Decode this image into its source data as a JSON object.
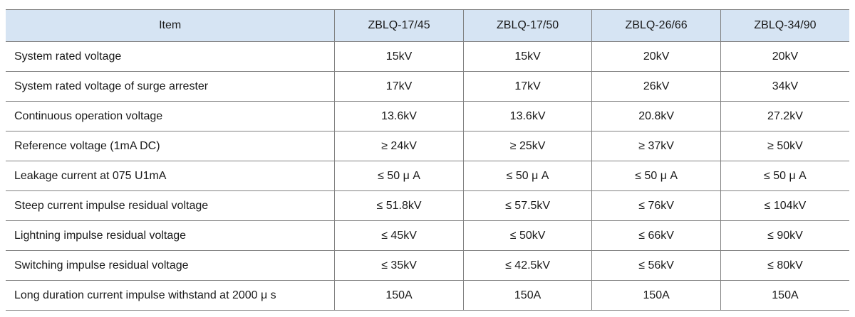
{
  "table": {
    "colors": {
      "header_bg": "#d6e4f3",
      "border": "#808080",
      "text": "#1a1a1a"
    },
    "headers": [
      "Item",
      "ZBLQ-17/45",
      "ZBLQ-17/50",
      "ZBLQ-26/66",
      "ZBLQ-34/90"
    ],
    "rows": [
      {
        "item": "System rated voltage",
        "values": [
          "15kV",
          "15kV",
          "20kV",
          "20kV"
        ]
      },
      {
        "item": "System rated voltage of surge arrester",
        "values": [
          "17kV",
          "17kV",
          "26kV",
          "34kV"
        ]
      },
      {
        "item": "Continuous operation voltage",
        "values": [
          "13.6kV",
          "13.6kV",
          "20.8kV",
          "27.2kV"
        ]
      },
      {
        "item": "Reference voltage (1mA DC)",
        "values": [
          "≥ 24kV",
          "≥ 25kV",
          "≥ 37kV",
          "≥ 50kV"
        ]
      },
      {
        "item": "Leakage current at 075 U1mA",
        "values": [
          "≤ 50 μ A",
          "≤ 50 μ A",
          "≤ 50 μ A",
          "≤ 50 μ A"
        ]
      },
      {
        "item": "Steep current impulse residual voltage",
        "values": [
          "≤ 51.8kV",
          "≤ 57.5kV",
          "≤ 76kV",
          "≤ 104kV"
        ]
      },
      {
        "item": "Lightning impulse residual voltage",
        "values": [
          "≤ 45kV",
          "≤ 50kV",
          "≤ 66kV",
          "≤ 90kV"
        ]
      },
      {
        "item": "Switching impulse residual voltage",
        "values": [
          "≤ 35kV",
          "≤ 42.5kV",
          "≤ 56kV",
          "≤ 80kV"
        ]
      },
      {
        "item": "Long duration current impulse withstand at 2000 μ s",
        "values": [
          "150A",
          "150A",
          "150A",
          "150A"
        ]
      }
    ]
  }
}
